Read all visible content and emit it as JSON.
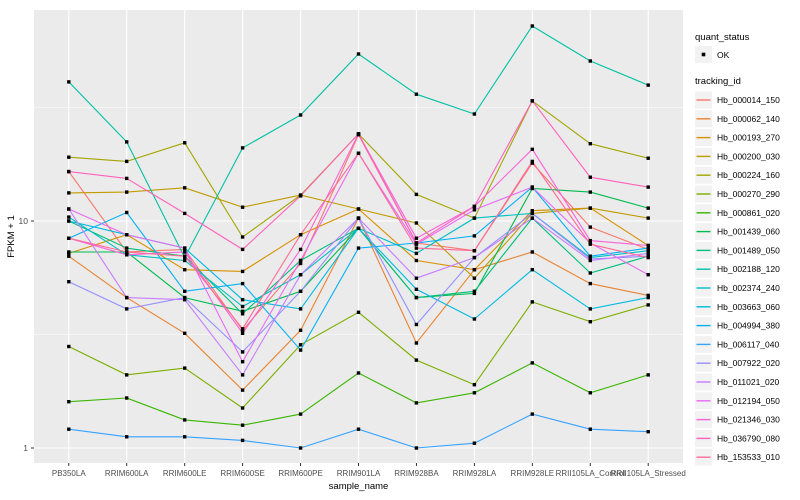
{
  "figure": {
    "background": "#FFFFFF",
    "panel_background": "#EBEBEB",
    "grid_color": "#FFFFFF",
    "tick_label_color": "#4D4D4D",
    "text_color": "#000000",
    "point_color": "#000000",
    "legend_key_background": "#F2F2F2"
  },
  "legend": {
    "quant_status_title": "quant_status",
    "quant_status_items": [
      {
        "label": "OK",
        "marker": "black-point"
      }
    ],
    "tracking_id_title": "tracking_id"
  },
  "chart_data": {
    "type": "line",
    "title": "",
    "xlabel": "sample_name",
    "ylabel": "FPKM + 1",
    "y_scale": "log10",
    "ylim": [
      0.86,
      85
    ],
    "y_major_ticks": [
      {
        "label": "1",
        "value": 1
      },
      {
        "label": "10",
        "value": 10
      }
    ],
    "y_minor_values": [
      3.1623,
      31.623
    ],
    "grid": true,
    "legend_position": "right",
    "point_shape": "filled-square",
    "categories": [
      "PB350LA",
      "RRIM600LA",
      "RRIM600LE",
      "RRIM600SE",
      "RRIM600PE",
      "RRIM901LA",
      "RRIM928BA",
      "RRIM928LA",
      "RRIM928LE",
      "RRII105LA_Control",
      "RRII105LA_Stressed"
    ],
    "series": [
      {
        "name": "Hb_000014_150",
        "color": "#F8766D",
        "values": [
          16.5,
          7.3,
          7.5,
          3.3,
          6.5,
          24.0,
          8.0,
          7.4,
          18.0,
          9.4,
          7.5
        ]
      },
      {
        "name": "Hb_000062_140",
        "color": "#EA8331",
        "values": [
          7.0,
          4.6,
          3.2,
          1.8,
          3.3,
          10.3,
          2.9,
          6.1,
          7.3,
          5.3,
          4.7
        ]
      },
      {
        "name": "Hb_000193_270",
        "color": "#D89000",
        "values": [
          7.2,
          8.7,
          6.1,
          6.0,
          8.7,
          11.3,
          6.7,
          6.1,
          11.1,
          11.4,
          7.8
        ]
      },
      {
        "name": "Hb_000200_030",
        "color": "#C09B00",
        "values": [
          13.3,
          13.4,
          14.0,
          11.5,
          13.0,
          11.3,
          9.8,
          5.6,
          10.8,
          11.4,
          10.3
        ]
      },
      {
        "name": "Hb_000224_160",
        "color": "#A3A500",
        "values": [
          19.1,
          18.3,
          22.1,
          8.5,
          13.0,
          24.2,
          13.1,
          10.3,
          33.8,
          21.9,
          18.9
        ]
      },
      {
        "name": "Hb_000270_290",
        "color": "#7CAE00",
        "values": [
          2.8,
          2.1,
          2.25,
          1.5,
          2.85,
          3.96,
          2.44,
          1.9,
          4.4,
          3.6,
          4.27
        ]
      },
      {
        "name": "Hb_000861_020",
        "color": "#39B600",
        "values": [
          1.6,
          1.66,
          1.33,
          1.26,
          1.41,
          2.14,
          1.58,
          1.75,
          2.37,
          1.75,
          2.1
        ]
      },
      {
        "name": "Hb_001439_060",
        "color": "#00BB4E",
        "values": [
          7.3,
          7.3,
          4.6,
          4.0,
          4.9,
          9.3,
          4.6,
          4.8,
          13.9,
          13.4,
          11.4
        ]
      },
      {
        "name": "Hb_001489_050",
        "color": "#00BF7D",
        "values": [
          10.0,
          7.6,
          7.0,
          3.9,
          6.7,
          9.3,
          4.6,
          4.9,
          10.3,
          5.9,
          7.0
        ]
      },
      {
        "name": "Hb_002188_120",
        "color": "#00C1A3",
        "values": [
          41.0,
          22.3,
          6.9,
          21.0,
          29.3,
          54.4,
          36.2,
          29.6,
          72.3,
          50.7,
          39.7
        ]
      },
      {
        "name": "Hb_002374_240",
        "color": "#00BFC4",
        "values": [
          10.4,
          7.1,
          6.7,
          4.2,
          5.8,
          9.3,
          7.2,
          10.3,
          10.8,
          6.9,
          7.4
        ]
      },
      {
        "name": "Hb_003663_060",
        "color": "#00BAE0",
        "values": [
          10.0,
          8.7,
          7.6,
          4.5,
          4.1,
          9.3,
          5.0,
          3.7,
          6.1,
          4.1,
          4.6
        ]
      },
      {
        "name": "Hb_004994_380",
        "color": "#00B0F6",
        "values": [
          8.4,
          10.9,
          4.9,
          5.3,
          2.7,
          7.6,
          8.0,
          8.6,
          14.1,
          7.0,
          7.6
        ]
      },
      {
        "name": "Hb_006117_040",
        "color": "#35A2FF",
        "values": [
          1.21,
          1.12,
          1.12,
          1.08,
          1.0,
          1.21,
          1.0,
          1.05,
          1.41,
          1.21,
          1.18
        ]
      },
      {
        "name": "Hb_007922_020",
        "color": "#9590FF",
        "values": [
          5.4,
          4.1,
          4.6,
          2.65,
          4.9,
          10.3,
          3.5,
          6.9,
          10.8,
          6.8,
          7.0
        ]
      },
      {
        "name": "Hb_011021_020",
        "color": "#C77CFF",
        "values": [
          11.3,
          4.6,
          4.5,
          2.1,
          5.8,
          10.3,
          5.6,
          6.9,
          10.3,
          6.7,
          7.2
        ]
      },
      {
        "name": "Hb_012194_050",
        "color": "#E76BF3",
        "values": [
          11.3,
          8.7,
          7.6,
          2.4,
          6.7,
          19.9,
          7.9,
          11.2,
          14.1,
          8.0,
          5.8
        ]
      },
      {
        "name": "Hb_021346_030",
        "color": "#FA62DB",
        "values": [
          8.4,
          7.1,
          7.3,
          3.2,
          7.5,
          24.2,
          8.4,
          11.6,
          20.7,
          8.2,
          7.8
        ]
      },
      {
        "name": "Hb_036790_080",
        "color": "#FF62BC",
        "values": [
          16.5,
          15.4,
          10.8,
          7.5,
          12.9,
          24.2,
          8.0,
          11.6,
          33.8,
          15.6,
          14.1
        ]
      },
      {
        "name": "Hb_153533_010",
        "color": "#FF6A98",
        "values": [
          8.4,
          7.3,
          7.0,
          3.35,
          8.7,
          19.9,
          7.6,
          7.4,
          18.3,
          7.9,
          6.9
        ]
      }
    ]
  }
}
